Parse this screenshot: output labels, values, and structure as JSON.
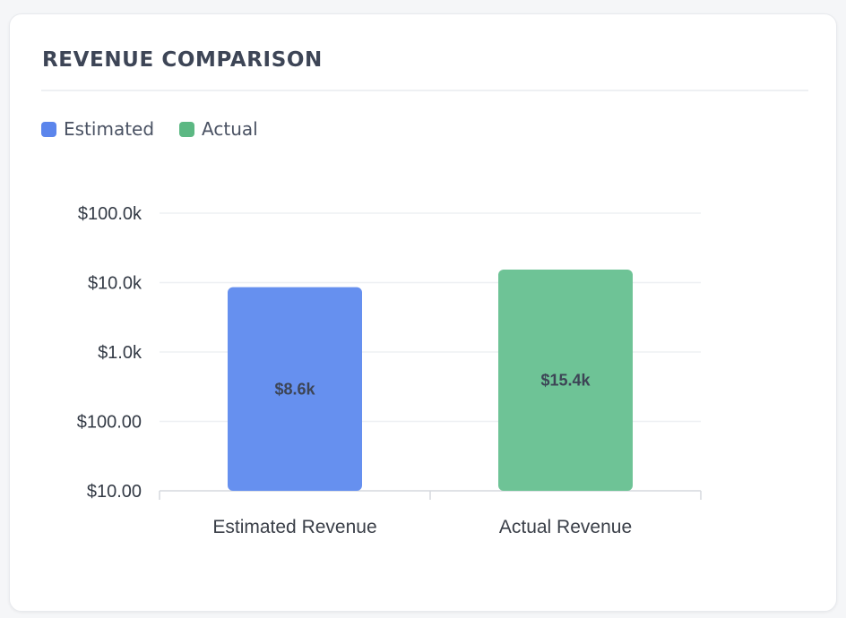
{
  "card": {
    "title": "REVENUE COMPARISON"
  },
  "legend": [
    {
      "label": "Estimated",
      "color": "#5b85ec"
    },
    {
      "label": "Actual",
      "color": "#5cb883"
    }
  ],
  "chart_data": {
    "type": "bar",
    "scale": "log",
    "categories": [
      "Estimated Revenue",
      "Actual Revenue"
    ],
    "values": [
      8600,
      15400
    ],
    "value_labels": [
      "$8.6k",
      "$15.4k"
    ],
    "colors": [
      "#6690ef",
      "#6ec396"
    ],
    "ylim": [
      10,
      100000
    ],
    "yticks": [
      10,
      100,
      1000,
      10000,
      100000
    ],
    "ytick_labels": [
      "$10.00",
      "$100.00",
      "$1.0k",
      "$10.0k",
      "$100.0k"
    ],
    "grid": true,
    "legend_position": "top-left"
  }
}
